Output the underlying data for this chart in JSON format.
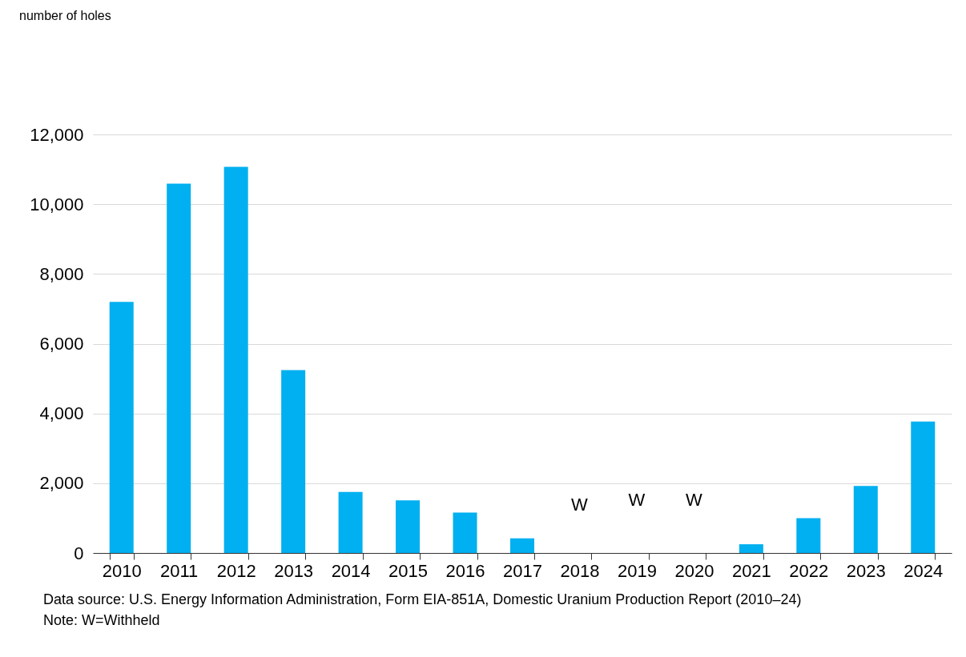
{
  "chart_data": {
    "type": "bar",
    "categories": [
      "2010",
      "2011",
      "2012",
      "2013",
      "2014",
      "2015",
      "2016",
      "2017",
      "2018",
      "2019",
      "2020",
      "2021",
      "2022",
      "2023",
      "2024"
    ],
    "values": [
      7200,
      10590,
      11070,
      5240,
      1750,
      1510,
      1160,
      420,
      null,
      null,
      null,
      250,
      1000,
      1920,
      3770
    ],
    "color": "#00b0f0",
    "ylim": [
      0,
      12000
    ],
    "yticks": [
      {
        "value": 0,
        "label": "0"
      },
      {
        "value": 2000,
        "label": "2,000"
      },
      {
        "value": 4000,
        "label": "4,000"
      },
      {
        "value": 6000,
        "label": "6,000"
      },
      {
        "value": 8000,
        "label": "8,000"
      },
      {
        "value": 10000,
        "label": "10,000"
      },
      {
        "value": 12000,
        "label": "12,000"
      }
    ],
    "grid": "y",
    "annotations": [
      "number of holes",
      "W",
      "W",
      "W",
      "Data source: U.S. Energy Information Administration, Form EIA-851A, Domestic Uranium Production Report (2010–24)",
      "Note: W=Withheld"
    ]
  }
}
